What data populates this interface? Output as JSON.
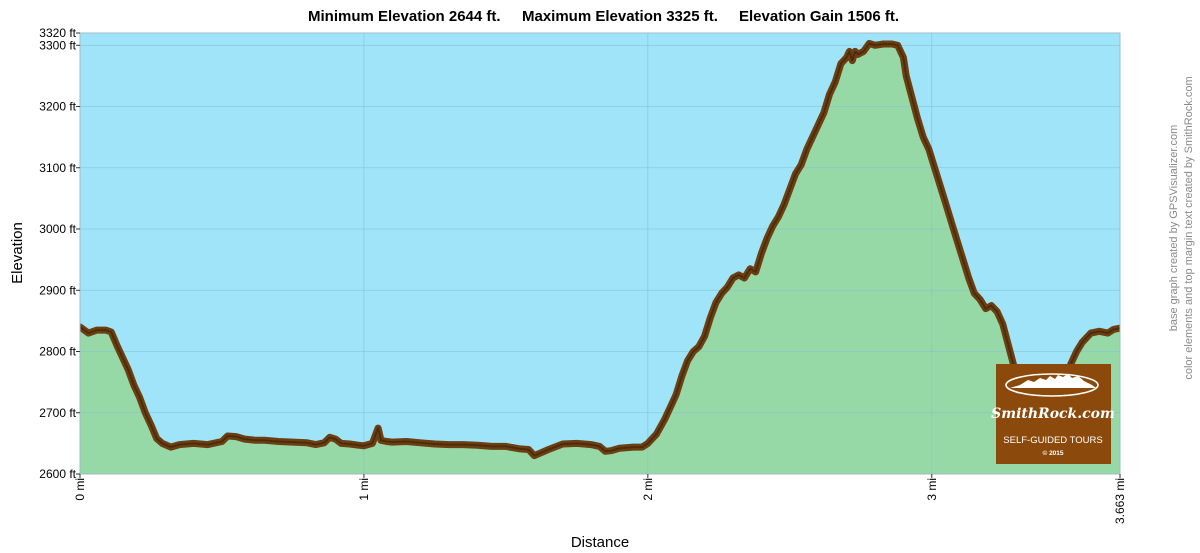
{
  "chart_data": {
    "type": "area",
    "title_parts": [
      "Minimum Elevation  2644 ft.",
      "Maximum Elevation 3325 ft.",
      "Elevation Gain 1506 ft."
    ],
    "xlabel": "Distance",
    "ylabel": "Elevation",
    "xlim": [
      0,
      3.663
    ],
    "ylim": [
      2600,
      3320
    ],
    "x_ticks": [
      {
        "value": 0,
        "label": "0 mi"
      },
      {
        "value": 1,
        "label": "1 mi"
      },
      {
        "value": 2,
        "label": "2 mi"
      },
      {
        "value": 3,
        "label": "3 mi"
      },
      {
        "value": 3.663,
        "label": "3.663 mi"
      }
    ],
    "y_ticks": [
      {
        "value": 2600,
        "label": "2600 ft"
      },
      {
        "value": 2700,
        "label": "2700 ft"
      },
      {
        "value": 2800,
        "label": "2800 ft"
      },
      {
        "value": 2900,
        "label": "2900 ft"
      },
      {
        "value": 3000,
        "label": "3000 ft"
      },
      {
        "value": 3100,
        "label": "3100 ft"
      },
      {
        "value": 3200,
        "label": "3200 ft"
      },
      {
        "value": 3300,
        "label": "3300 ft"
      },
      {
        "value": 3320,
        "label": "3320 ft"
      }
    ],
    "grid": true,
    "colors": {
      "sky": "#a0e4fa",
      "fill": "#97d9a6",
      "line": "#6b3f12",
      "grid": "#7fc3d6",
      "logo_bg": "#8b4a0c"
    },
    "series": [
      {
        "points": [
          [
            0.0,
            2840
          ],
          [
            0.03,
            2830
          ],
          [
            0.06,
            2835
          ],
          [
            0.09,
            2835
          ],
          [
            0.11,
            2832
          ],
          [
            0.13,
            2810
          ],
          [
            0.15,
            2790
          ],
          [
            0.17,
            2770
          ],
          [
            0.19,
            2745
          ],
          [
            0.21,
            2725
          ],
          [
            0.23,
            2700
          ],
          [
            0.25,
            2680
          ],
          [
            0.27,
            2658
          ],
          [
            0.29,
            2650
          ],
          [
            0.32,
            2644
          ],
          [
            0.35,
            2648
          ],
          [
            0.4,
            2650
          ],
          [
            0.45,
            2648
          ],
          [
            0.5,
            2653
          ],
          [
            0.52,
            2662
          ],
          [
            0.55,
            2661
          ],
          [
            0.58,
            2657
          ],
          [
            0.62,
            2655
          ],
          [
            0.65,
            2655
          ],
          [
            0.7,
            2653
          ],
          [
            0.75,
            2652
          ],
          [
            0.8,
            2651
          ],
          [
            0.83,
            2648
          ],
          [
            0.86,
            2651
          ],
          [
            0.88,
            2660
          ],
          [
            0.9,
            2657
          ],
          [
            0.92,
            2650
          ],
          [
            0.95,
            2649
          ],
          [
            0.98,
            2647
          ],
          [
            1.0,
            2646
          ],
          [
            1.03,
            2650
          ],
          [
            1.05,
            2675
          ],
          [
            1.06,
            2655
          ],
          [
            1.08,
            2653
          ],
          [
            1.1,
            2652
          ],
          [
            1.15,
            2653
          ],
          [
            1.2,
            2651
          ],
          [
            1.25,
            2649
          ],
          [
            1.3,
            2648
          ],
          [
            1.35,
            2648
          ],
          [
            1.4,
            2647
          ],
          [
            1.45,
            2645
          ],
          [
            1.5,
            2645
          ],
          [
            1.55,
            2641
          ],
          [
            1.58,
            2640
          ],
          [
            1.6,
            2630
          ],
          [
            1.62,
            2634
          ],
          [
            1.65,
            2640
          ],
          [
            1.7,
            2649
          ],
          [
            1.75,
            2650
          ],
          [
            1.8,
            2648
          ],
          [
            1.83,
            2645
          ],
          [
            1.85,
            2637
          ],
          [
            1.87,
            2638
          ],
          [
            1.9,
            2642
          ],
          [
            1.95,
            2644
          ],
          [
            1.98,
            2644
          ],
          [
            2.0,
            2650
          ],
          [
            2.03,
            2665
          ],
          [
            2.06,
            2690
          ],
          [
            2.08,
            2710
          ],
          [
            2.1,
            2730
          ],
          [
            2.12,
            2760
          ],
          [
            2.14,
            2785
          ],
          [
            2.16,
            2800
          ],
          [
            2.18,
            2808
          ],
          [
            2.2,
            2825
          ],
          [
            2.22,
            2855
          ],
          [
            2.24,
            2880
          ],
          [
            2.26,
            2895
          ],
          [
            2.28,
            2905
          ],
          [
            2.3,
            2920
          ],
          [
            2.32,
            2925
          ],
          [
            2.34,
            2920
          ],
          [
            2.36,
            2935
          ],
          [
            2.38,
            2930
          ],
          [
            2.4,
            2960
          ],
          [
            2.42,
            2985
          ],
          [
            2.44,
            3005
          ],
          [
            2.46,
            3020
          ],
          [
            2.48,
            3040
          ],
          [
            2.5,
            3065
          ],
          [
            2.52,
            3090
          ],
          [
            2.54,
            3105
          ],
          [
            2.56,
            3130
          ],
          [
            2.58,
            3150
          ],
          [
            2.6,
            3170
          ],
          [
            2.62,
            3190
          ],
          [
            2.64,
            3220
          ],
          [
            2.66,
            3240
          ],
          [
            2.68,
            3270
          ],
          [
            2.7,
            3280
          ],
          [
            2.71,
            3290
          ],
          [
            2.72,
            3275
          ],
          [
            2.73,
            3290
          ],
          [
            2.74,
            3285
          ],
          [
            2.76,
            3290
          ],
          [
            2.78,
            3303
          ],
          [
            2.8,
            3300
          ],
          [
            2.83,
            3302
          ],
          [
            2.86,
            3302
          ],
          [
            2.88,
            3300
          ],
          [
            2.9,
            3280
          ],
          [
            2.91,
            3250
          ],
          [
            2.93,
            3215
          ],
          [
            2.95,
            3180
          ],
          [
            2.97,
            3150
          ],
          [
            2.99,
            3130
          ],
          [
            3.01,
            3100
          ],
          [
            3.03,
            3070
          ],
          [
            3.05,
            3040
          ],
          [
            3.07,
            3010
          ],
          [
            3.09,
            2980
          ],
          [
            3.11,
            2950
          ],
          [
            3.13,
            2920
          ],
          [
            3.15,
            2895
          ],
          [
            3.17,
            2885
          ],
          [
            3.19,
            2870
          ],
          [
            3.21,
            2875
          ],
          [
            3.23,
            2865
          ],
          [
            3.25,
            2845
          ],
          [
            3.27,
            2810
          ],
          [
            3.29,
            2775
          ],
          [
            3.31,
            2750
          ],
          [
            3.33,
            2725
          ],
          [
            3.35,
            2700
          ],
          [
            3.37,
            2680
          ],
          [
            3.39,
            2670
          ],
          [
            3.41,
            2670
          ],
          [
            3.43,
            2690
          ],
          [
            3.45,
            2720
          ],
          [
            3.47,
            2755
          ],
          [
            3.49,
            2780
          ],
          [
            3.51,
            2800
          ],
          [
            3.53,
            2815
          ],
          [
            3.56,
            2830
          ],
          [
            3.59,
            2833
          ],
          [
            3.62,
            2830
          ],
          [
            3.64,
            2836
          ],
          [
            3.663,
            2838
          ]
        ]
      }
    ]
  },
  "credits": {
    "line1": "base graph created by GPSVisualizer.com",
    "line2": "color elements and top margin text created by SmithRock.com"
  },
  "logo": {
    "brand": "SmithRock.com",
    "tagline": "SELF-GUIDED TOURS",
    "copyright": "© 2015"
  }
}
